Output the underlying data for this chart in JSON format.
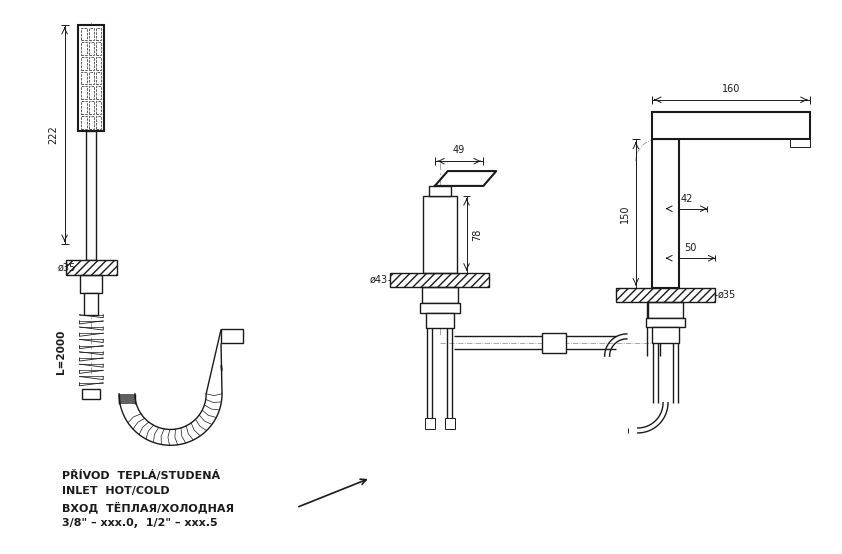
{
  "bg_color": "#ffffff",
  "line_color": "#1a1a1a",
  "figsize": [
    8.42,
    5.54
  ],
  "dpi": 100,
  "texts": {
    "dim_222": "222",
    "dim_35_left": "ø35",
    "dim_L2000": "L=2000",
    "dim_49": "49",
    "dim_78": "78",
    "dim_43": "ø43",
    "dim_160": "160",
    "dim_150": "150",
    "dim_42": "42",
    "dim_50": "50",
    "dim_35_right": "ø35",
    "label1": "PŘÍVOD  TEPLÁ/STUDENÁ",
    "label2": "INLET  HOT/COLD",
    "label3": "ВХОД  ТЁПЛАЯ/ХОЛОДНАЯ",
    "label4": "3/8\" – xxx.0,  1/2\" – xxx.5"
  }
}
